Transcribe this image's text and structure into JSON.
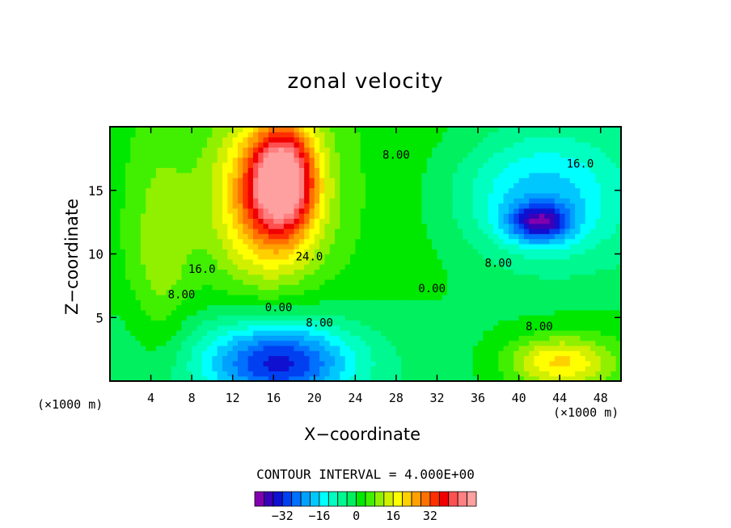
{
  "chart_data": {
    "type": "heatmap",
    "title": "zonal velocity",
    "xlabel": "X−coordinate",
    "ylabel": "Z−coordinate",
    "x_unit_left": "(×1000 m)",
    "x_unit_right": "(×1000 m)",
    "xlim": [
      0,
      50
    ],
    "ylim": [
      0,
      20
    ],
    "x_ticks": [
      "4",
      "8",
      "12",
      "16",
      "20",
      "24",
      "28",
      "32",
      "36",
      "40",
      "44",
      "48"
    ],
    "y_ticks": [
      "5",
      "10",
      "15"
    ],
    "contour_interval_text": "CONTOUR INTERVAL = 4.000E+00",
    "contour_labels": [
      "24.0",
      "16.0",
      "8.00",
      "0.00",
      "8.00",
      "8.00",
      "8.00",
      "0.00",
      "8.00",
      "16.0"
    ],
    "colorbar": {
      "levels": [
        -40,
        -36,
        -32,
        -28,
        -24,
        -20,
        -16,
        -12,
        -8,
        -4,
        0,
        4,
        8,
        12,
        16,
        20,
        24,
        28,
        32,
        36,
        40
      ],
      "tick_labels": [
        "−32",
        "−16",
        "0",
        "16",
        "32"
      ],
      "colors": [
        "#8000b0",
        "#3a00b8",
        "#1010d0",
        "#0040f0",
        "#0070ff",
        "#00a0ff",
        "#00c8ff",
        "#00ffff",
        "#00ffc0",
        "#00f890",
        "#00f060",
        "#00e800",
        "#40f000",
        "#90f000",
        "#d0f000",
        "#ffff00",
        "#ffd000",
        "#ffa000",
        "#ff7000",
        "#ff3000",
        "#f00000",
        "#ff5050",
        "#ff8080",
        "#ffa0a0"
      ]
    },
    "blobs": [
      {
        "x": 15.5,
        "z": 14.5,
        "rx": 5,
        "rz": 6,
        "u": 28
      },
      {
        "x": 17.0,
        "z": 16.0,
        "rx": 3,
        "rz": 4,
        "u": 36
      },
      {
        "x": 16.5,
        "z": 1.5,
        "rx": 7,
        "rz": 3,
        "u": -30
      },
      {
        "x": 42.0,
        "z": 14.5,
        "rx": 8,
        "rz": 5,
        "u": -18
      },
      {
        "x": 42.0,
        "z": 12.5,
        "rx": 3,
        "rz": 1.5,
        "u": -26
      },
      {
        "x": 44.0,
        "z": 1.5,
        "rx": 5,
        "rz": 2,
        "u": 20
      },
      {
        "x": 5.0,
        "z": 10,
        "rx": 3,
        "rz": 9,
        "u": 8
      }
    ]
  }
}
